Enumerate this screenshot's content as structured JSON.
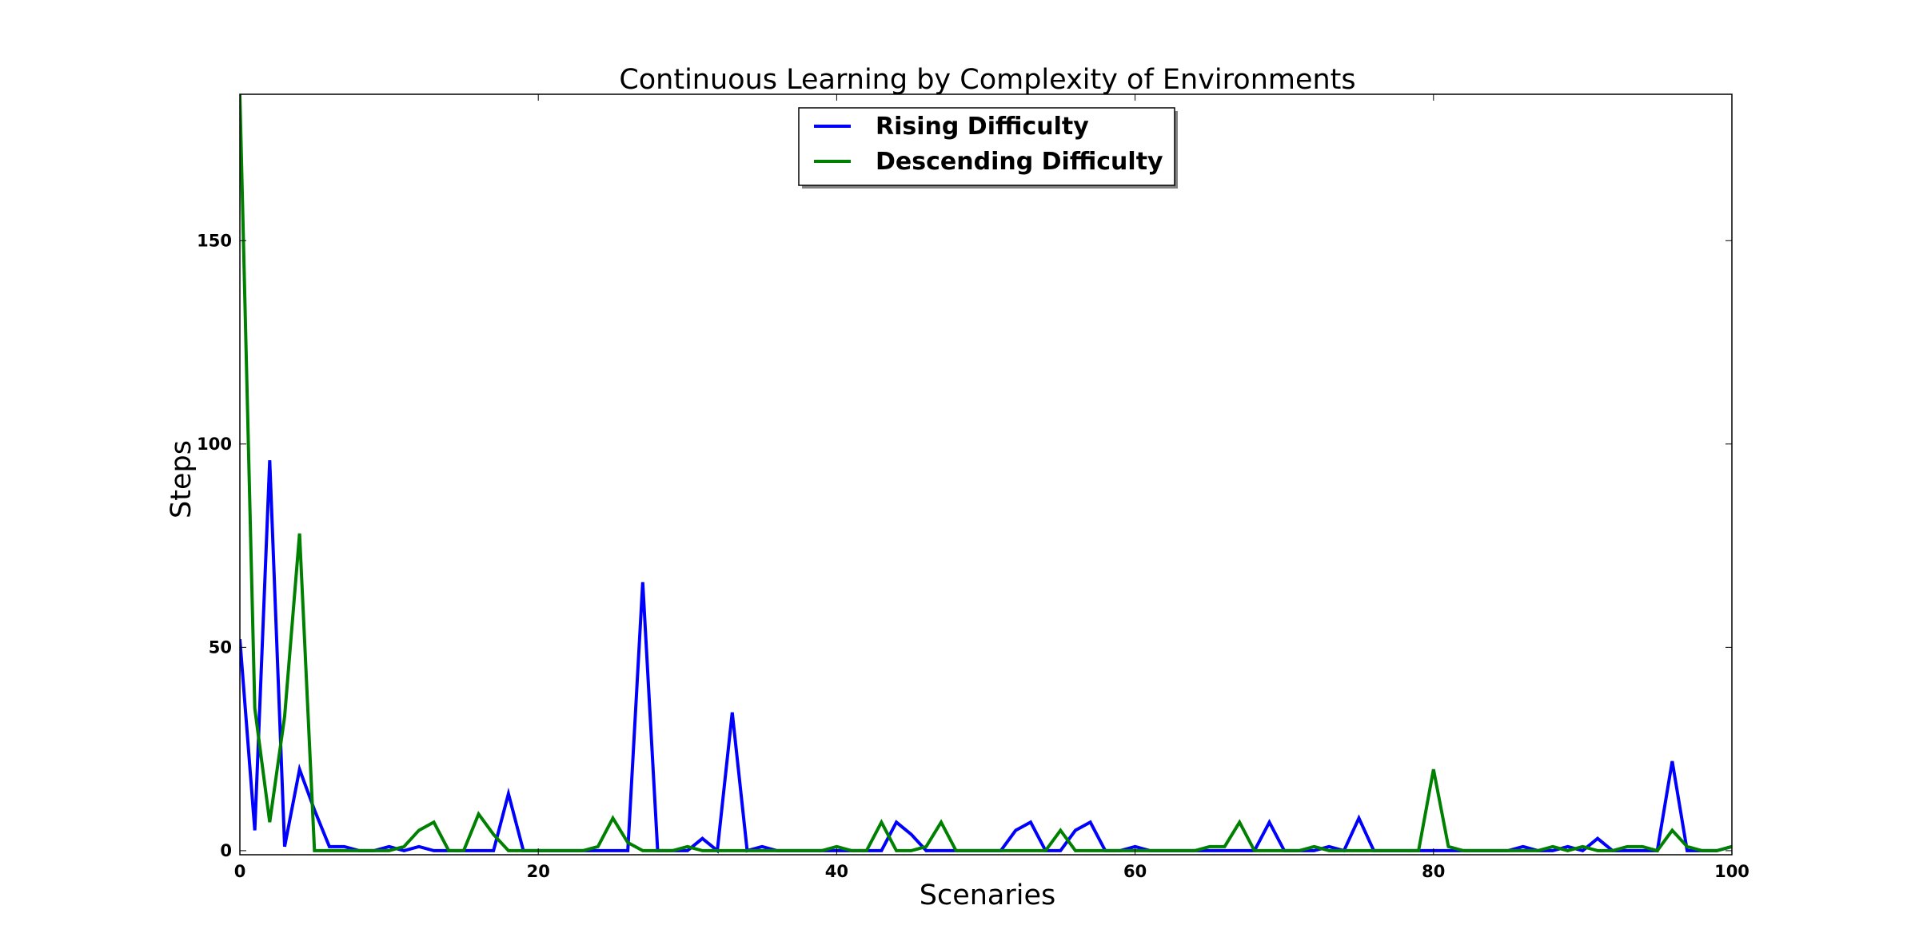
{
  "chart_data": {
    "type": "line",
    "title": "Continuous Learning by Complexity of Environments",
    "xlabel": "Scenaries",
    "ylabel": "Steps",
    "xlim": [
      0,
      100
    ],
    "ylim": [
      -1,
      186
    ],
    "xticks": [
      0,
      20,
      40,
      60,
      80,
      100
    ],
    "yticks": [
      0,
      50,
      100,
      150
    ],
    "grid": false,
    "legend_position": "upper center",
    "series": [
      {
        "name": "Rising Difficulty",
        "color": "#0000ff",
        "x": [
          0,
          1,
          2,
          3,
          4,
          5,
          6,
          7,
          8,
          9,
          10,
          11,
          12,
          13,
          14,
          15,
          16,
          17,
          18,
          19,
          20,
          21,
          22,
          23,
          24,
          25,
          26,
          27,
          28,
          29,
          30,
          31,
          32,
          33,
          34,
          35,
          36,
          37,
          38,
          39,
          40,
          41,
          42,
          43,
          44,
          45,
          46,
          47,
          48,
          49,
          50,
          51,
          52,
          53,
          54,
          55,
          56,
          57,
          58,
          59,
          60,
          61,
          62,
          63,
          64,
          65,
          66,
          67,
          68,
          69,
          70,
          71,
          72,
          73,
          74,
          75,
          76,
          77,
          78,
          79,
          80,
          81,
          82,
          83,
          84,
          85,
          86,
          87,
          88,
          89,
          90,
          91,
          92,
          93,
          94,
          95,
          96,
          97,
          98,
          99,
          100
        ],
        "values": [
          52,
          5,
          96,
          1,
          20,
          10,
          1,
          1,
          0,
          0,
          1,
          0,
          1,
          0,
          0,
          0,
          0,
          0,
          14,
          0,
          0,
          0,
          0,
          0,
          0,
          0,
          0,
          66,
          0,
          0,
          0,
          3,
          0,
          34,
          0,
          1,
          0,
          0,
          0,
          0,
          0,
          0,
          0,
          0,
          7,
          4,
          0,
          0,
          0,
          0,
          0,
          0,
          5,
          7,
          0,
          0,
          5,
          7,
          0,
          0,
          1,
          0,
          0,
          0,
          0,
          0,
          0,
          0,
          0,
          7,
          0,
          0,
          0,
          1,
          0,
          8,
          0,
          0,
          0,
          0,
          0,
          0,
          0,
          0,
          0,
          0,
          1,
          0,
          0,
          1,
          0,
          3,
          0,
          0,
          0,
          0,
          22,
          0,
          0,
          0,
          1
        ]
      },
      {
        "name": "Descending Difficulty",
        "color": "#008000",
        "x": [
          0,
          1,
          2,
          3,
          4,
          5,
          6,
          7,
          8,
          9,
          10,
          11,
          12,
          13,
          14,
          15,
          16,
          17,
          18,
          19,
          20,
          21,
          22,
          23,
          24,
          25,
          26,
          27,
          28,
          29,
          30,
          31,
          32,
          33,
          34,
          35,
          36,
          37,
          38,
          39,
          40,
          41,
          42,
          43,
          44,
          45,
          46,
          47,
          48,
          49,
          50,
          51,
          52,
          53,
          54,
          55,
          56,
          57,
          58,
          59,
          60,
          61,
          62,
          63,
          64,
          65,
          66,
          67,
          68,
          69,
          70,
          71,
          72,
          73,
          74,
          75,
          76,
          77,
          78,
          79,
          80,
          81,
          82,
          83,
          84,
          85,
          86,
          87,
          88,
          89,
          90,
          91,
          92,
          93,
          94,
          95,
          96,
          97,
          98,
          99,
          100
        ],
        "values": [
          186,
          35,
          7,
          33,
          78,
          0,
          0,
          0,
          0,
          0,
          0,
          1,
          5,
          7,
          0,
          0,
          9,
          4,
          0,
          0,
          0,
          0,
          0,
          0,
          1,
          8,
          2,
          0,
          0,
          0,
          1,
          0,
          0,
          0,
          0,
          0,
          0,
          0,
          0,
          0,
          1,
          0,
          0,
          7,
          0,
          0,
          1,
          7,
          0,
          0,
          0,
          0,
          0,
          0,
          0,
          5,
          0,
          0,
          0,
          0,
          0,
          0,
          0,
          0,
          0,
          1,
          1,
          7,
          0,
          0,
          0,
          0,
          1,
          0,
          0,
          0,
          0,
          0,
          0,
          0,
          20,
          1,
          0,
          0,
          0,
          0,
          0,
          0,
          1,
          0,
          1,
          0,
          0,
          1,
          1,
          0,
          5,
          1,
          0,
          0,
          1
        ]
      }
    ]
  }
}
